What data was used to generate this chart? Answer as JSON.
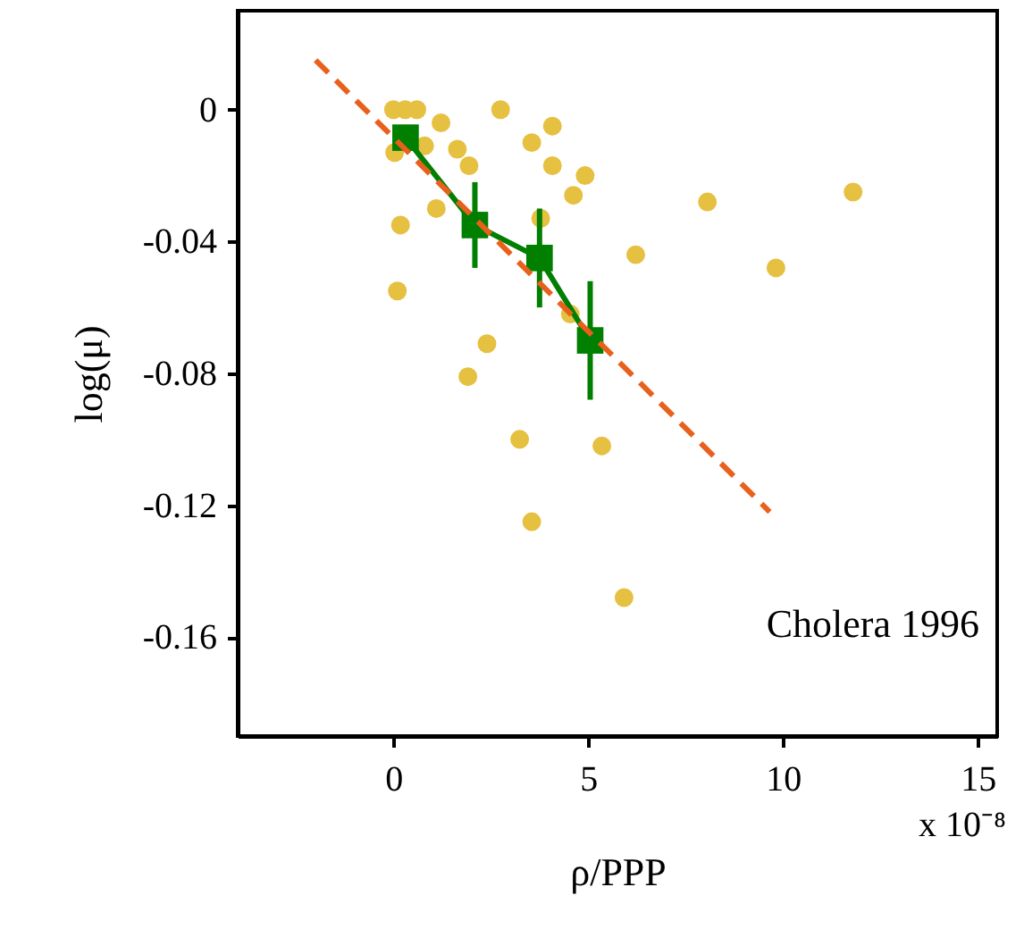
{
  "chart_data": {
    "type": "scatter",
    "xlabel": "ρ/PPP",
    "ylabel": "log(μ)",
    "annotations": [
      "Cholera 1996",
      "x 10⁻⁸"
    ],
    "xlim": [
      -4,
      15.5
    ],
    "xticks": [
      0,
      5,
      10,
      15
    ],
    "ylim": [
      -0.19,
      0.03
    ],
    "yticks": [
      0,
      -0.04,
      -0.08,
      -0.12,
      -0.16
    ],
    "series": [
      {
        "color": "#e6c040",
        "marker": "circle",
        "x": [
          0,
          0.3,
          0.6,
          1.22,
          2.75,
          3.55,
          4.08,
          4.08,
          1.64,
          1.94,
          0.8,
          0.03,
          4.92,
          4.62,
          1.1,
          0.18,
          3.78,
          8.06,
          11.8,
          6.22,
          9.82,
          0.1,
          2.4,
          4.54,
          1.91,
          3.24,
          5.35,
          3.55,
          5.92
        ],
        "values": [
          0,
          0,
          0,
          -0.004,
          0,
          -0.01,
          -0.005,
          -0.017,
          -0.012,
          -0.017,
          -0.011,
          -0.013,
          -0.02,
          -0.026,
          -0.03,
          -0.035,
          -0.033,
          -0.028,
          -0.025,
          -0.044,
          -0.048,
          -0.055,
          -0.071,
          -0.062,
          -0.081,
          -0.1,
          -0.102,
          -0.125,
          -0.148
        ]
      },
      {
        "type": "line",
        "color": "#007f00",
        "marker": "square",
        "line_style": "solid",
        "x": [
          0.31,
          2.09,
          3.75,
          5.05
        ],
        "values": [
          -0.0085,
          -0.035,
          -0.045,
          -0.07
        ],
        "errors": [
          null,
          0.013,
          0.015,
          0.018
        ]
      },
      {
        "type": "line",
        "color": "#e8601c",
        "marker": "none",
        "line_style": "dashed",
        "x": [
          -2.0,
          9.66
        ],
        "values": [
          0.015,
          -0.122
        ]
      }
    ]
  }
}
